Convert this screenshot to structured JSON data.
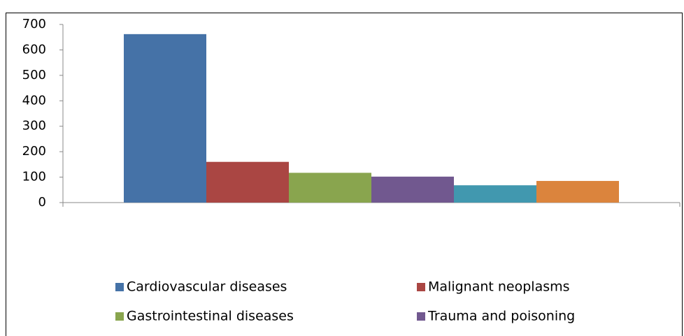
{
  "chart_data": {
    "type": "bar",
    "categories": [
      null
    ],
    "series": [
      {
        "name": "Cardiovascular diseases",
        "color": "#4572a7",
        "values": [
          662
        ]
      },
      {
        "name": "Malignant neoplasms",
        "color": "#aa4643",
        "values": [
          160
        ]
      },
      {
        "name": "Gastrointestinal diseases",
        "color": "#89a54e",
        "values": [
          117
        ]
      },
      {
        "name": "Trauma and poisoning",
        "color": "#71588f",
        "values": [
          102
        ]
      },
      {
        "color": "#4198af",
        "values": [
          68
        ]
      },
      {
        "color": "#db843d",
        "values": [
          85
        ]
      }
    ],
    "ylim": [
      0,
      700
    ],
    "yticks": [
      0,
      100,
      200,
      300,
      400,
      500,
      600,
      700
    ],
    "grid": false
  }
}
